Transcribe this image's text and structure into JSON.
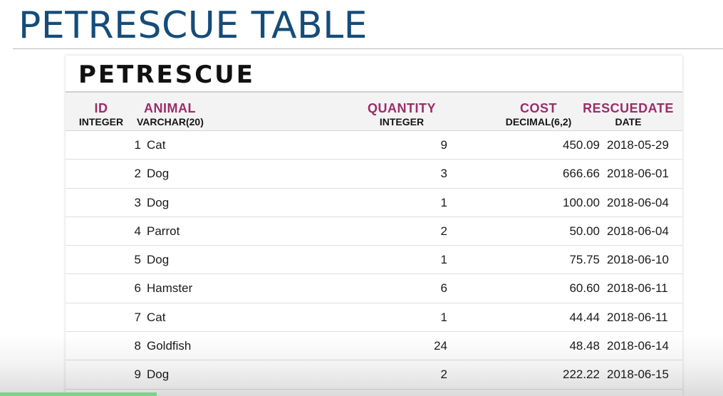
{
  "slide": {
    "title": "PETRESCUE TABLE",
    "title_color": "#154c79"
  },
  "table": {
    "name": "PETRESCUE",
    "header_color": "#9b2d6a",
    "columns": [
      {
        "name": "ID",
        "type": "INTEGER"
      },
      {
        "name": "ANIMAL",
        "type": "VARCHAR(20)"
      },
      {
        "name": "QUANTITY",
        "type": "INTEGER"
      },
      {
        "name": "COST",
        "type": "DECIMAL(6,2)"
      },
      {
        "name": "RESCUEDATE",
        "type": "DATE"
      }
    ],
    "rows": [
      {
        "id": "1",
        "animal": "Cat",
        "quantity": "9",
        "cost": "450.09",
        "rescuedate": "2018-05-29"
      },
      {
        "id": "2",
        "animal": "Dog",
        "quantity": "3",
        "cost": "666.66",
        "rescuedate": "2018-06-01"
      },
      {
        "id": "3",
        "animal": "Dog",
        "quantity": "1",
        "cost": "100.00",
        "rescuedate": "2018-06-04"
      },
      {
        "id": "4",
        "animal": "Parrot",
        "quantity": "2",
        "cost": "50.00",
        "rescuedate": "2018-06-04"
      },
      {
        "id": "5",
        "animal": "Dog",
        "quantity": "1",
        "cost": "75.75",
        "rescuedate": "2018-06-10"
      },
      {
        "id": "6",
        "animal": "Hamster",
        "quantity": "6",
        "cost": "60.60",
        "rescuedate": "2018-06-11"
      },
      {
        "id": "7",
        "animal": "Cat",
        "quantity": "1",
        "cost": "44.44",
        "rescuedate": "2018-06-11"
      },
      {
        "id": "8",
        "animal": "Goldfish",
        "quantity": "24",
        "cost": "48.48",
        "rescuedate": "2018-06-14"
      },
      {
        "id": "9",
        "animal": "Dog",
        "quantity": "2",
        "cost": "222.22",
        "rescuedate": "2018-06-15"
      }
    ]
  }
}
